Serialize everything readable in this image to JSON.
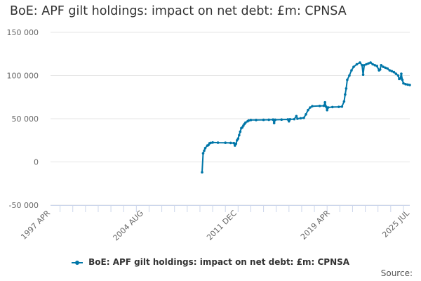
{
  "chart_data": {
    "type": "line",
    "title": "BoE: APF gilt holdings: impact on net debt: £m: CPNSA",
    "xlabel": "",
    "ylabel": "",
    "ylim": [
      -50000,
      150000
    ],
    "y_ticks": [
      -50000,
      0,
      50000,
      100000,
      150000
    ],
    "y_tick_labels": [
      "-50 000",
      "0",
      "50 000",
      "100 000",
      "150 000"
    ],
    "x_range": [
      "1997-04",
      "2025-07"
    ],
    "x_ticks": [
      "1997-04",
      "2004-08",
      "2011-12",
      "2019-04",
      "2025-07"
    ],
    "x_tick_labels": [
      "1997 APR",
      "2004 AUG",
      "2011 DEC",
      "2019 APR",
      "2025 JUL"
    ],
    "grid": "horizontal",
    "legend": "bottom",
    "color": "#0076a8",
    "series": [
      {
        "name": "BoE: APF gilt holdings: impact on net debt: £m: CPNSA",
        "points": [
          [
            "2009-03",
            -12000
          ],
          [
            "2009-04",
            10000
          ],
          [
            "2009-05",
            13000
          ],
          [
            "2009-06",
            16000
          ],
          [
            "2009-08",
            19000
          ],
          [
            "2009-09",
            19500
          ],
          [
            "2009-10",
            21500
          ],
          [
            "2009-11",
            22000
          ],
          [
            "2010-01",
            22500
          ],
          [
            "2010-06",
            22300
          ],
          [
            "2011-01",
            22200
          ],
          [
            "2011-06",
            22000
          ],
          [
            "2011-09",
            21800
          ],
          [
            "2011-10",
            19000
          ],
          [
            "2011-11",
            21000
          ],
          [
            "2011-12",
            25000
          ],
          [
            "2012-01",
            27000
          ],
          [
            "2012-02",
            31000
          ],
          [
            "2012-03",
            35000
          ],
          [
            "2012-04",
            39000
          ],
          [
            "2012-05",
            40000
          ],
          [
            "2012-06",
            42000
          ],
          [
            "2012-07",
            44000
          ],
          [
            "2012-08",
            45500
          ],
          [
            "2012-10",
            47000
          ],
          [
            "2012-11",
            48000
          ],
          [
            "2013-01",
            48500
          ],
          [
            "2013-06",
            48500
          ],
          [
            "2014-01",
            48700
          ],
          [
            "2014-06",
            48800
          ],
          [
            "2014-10",
            49000
          ],
          [
            "2014-11",
            45000
          ],
          [
            "2014-12",
            48800
          ],
          [
            "2015-06",
            49000
          ],
          [
            "2015-12",
            49200
          ],
          [
            "2016-01",
            47000
          ],
          [
            "2016-02",
            49300
          ],
          [
            "2016-06",
            49500
          ],
          [
            "2016-08",
            53000
          ],
          [
            "2016-09",
            50000
          ],
          [
            "2016-12",
            50500
          ],
          [
            "2017-03",
            51000
          ],
          [
            "2017-05",
            55000
          ],
          [
            "2017-07",
            60000
          ],
          [
            "2017-09",
            63000
          ],
          [
            "2017-11",
            64500
          ],
          [
            "2018-06",
            64800
          ],
          [
            "2018-10",
            65000
          ],
          [
            "2018-11",
            69000
          ],
          [
            "2018-12",
            64000
          ],
          [
            "2019-01",
            60000
          ],
          [
            "2019-02",
            63000
          ],
          [
            "2019-06",
            63500
          ],
          [
            "2019-12",
            63700
          ],
          [
            "2020-03",
            64000
          ],
          [
            "2020-05",
            70000
          ],
          [
            "2020-06",
            78000
          ],
          [
            "2020-07",
            85000
          ],
          [
            "2020-08",
            95000
          ],
          [
            "2020-10",
            100000
          ],
          [
            "2020-12",
            106000
          ],
          [
            "2021-02",
            110000
          ],
          [
            "2021-05",
            113000
          ],
          [
            "2021-08",
            115000
          ],
          [
            "2021-10",
            112000
          ],
          [
            "2021-11",
            101000
          ],
          [
            "2021-12",
            112000
          ],
          [
            "2022-02",
            113000
          ],
          [
            "2022-04",
            114000
          ],
          [
            "2022-06",
            115000
          ],
          [
            "2022-08",
            113000
          ],
          [
            "2022-10",
            112000
          ],
          [
            "2022-12",
            111000
          ],
          [
            "2023-02",
            106000
          ],
          [
            "2023-03",
            107000
          ],
          [
            "2023-04",
            112000
          ],
          [
            "2023-06",
            110000
          ],
          [
            "2023-08",
            109000
          ],
          [
            "2023-10",
            108000
          ],
          [
            "2023-12",
            106000
          ],
          [
            "2024-02",
            105000
          ],
          [
            "2024-04",
            104000
          ],
          [
            "2024-06",
            102000
          ],
          [
            "2024-08",
            100000
          ],
          [
            "2024-09",
            96000
          ],
          [
            "2024-10",
            96500
          ],
          [
            "2024-11",
            102000
          ],
          [
            "2024-12",
            95000
          ],
          [
            "2025-01",
            91000
          ],
          [
            "2025-03",
            90000
          ],
          [
            "2025-05",
            89500
          ],
          [
            "2025-07",
            89000
          ]
        ]
      }
    ]
  },
  "legend_label": "BoE: APF gilt holdings: impact on net debt: £m: CPNSA",
  "source_label": "Source:"
}
